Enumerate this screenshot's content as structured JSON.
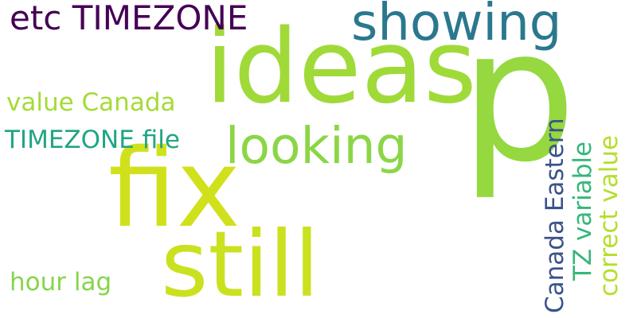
{
  "words": [
    {
      "text": "ideas",
      "color": "#a0da39"
    },
    {
      "text": "p",
      "color": "#95d840"
    },
    {
      "text": "fix",
      "color": "#d0e11c"
    },
    {
      "text": "still",
      "color": "#cae11f"
    },
    {
      "text": "showing",
      "color": "#2a788e"
    },
    {
      "text": "looking",
      "color": "#8bd646"
    },
    {
      "text": "etc TIMEZONE",
      "color": "#440154"
    },
    {
      "text": "value Canada",
      "color": "#a5db36"
    },
    {
      "text": "TIMEZONE file",
      "color": "#21a585"
    },
    {
      "text": "hour lag",
      "color": "#86d549"
    },
    {
      "text": "Canada Eastern",
      "color": "#3b528b"
    },
    {
      "text": "TZ variable",
      "color": "#35b779"
    },
    {
      "text": "correct value",
      "color": "#b5de2b"
    }
  ]
}
